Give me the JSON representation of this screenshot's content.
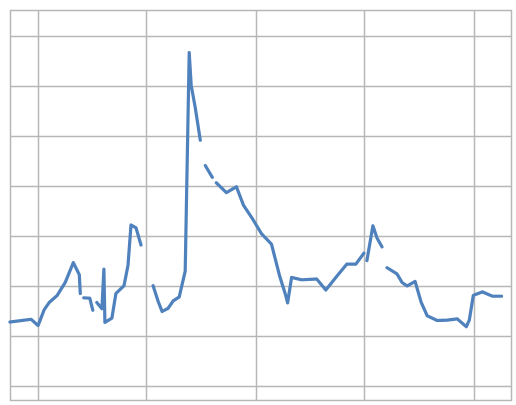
{
  "chart_data": {
    "type": "line",
    "title": "",
    "xlabel": "",
    "ylabel": "",
    "grid": true,
    "legend": "none",
    "xlim": [
      0,
      100
    ],
    "ylim": [
      0,
      100
    ],
    "series_color": "#4F81BD",
    "grid_color": "#B7B7B7",
    "series": [
      {
        "name": "",
        "segments": [
          [
            [
              0,
              20.2
            ],
            [
              4.2,
              20.9
            ],
            [
              5.6,
              19.3
            ],
            [
              6.8,
              23.3
            ],
            [
              7.8,
              25.2
            ],
            [
              9.4,
              27.0
            ],
            [
              11.0,
              30.3
            ],
            [
              12.6,
              35.4
            ],
            [
              13.8,
              32.3
            ],
            [
              14.0,
              27.5
            ]
          ],
          [
            [
              14.7,
              26.4
            ],
            [
              15.9,
              26.3
            ],
            [
              16.5,
              23.2
            ]
          ],
          [
            [
              17.3,
              25.2
            ],
            [
              18.3,
              23.6
            ],
            [
              18.7,
              33.7
            ],
            [
              18.9,
              20.1
            ],
            [
              20.3,
              21.2
            ],
            [
              21.1,
              27.5
            ],
            [
              22.7,
              29.5
            ],
            [
              23.5,
              34.7
            ],
            [
              24.1,
              45.0
            ],
            [
              25.1,
              44.3
            ],
            [
              26.1,
              39.9
            ]
          ],
          [
            [
              28.5,
              29.5
            ],
            [
              29.5,
              25.5
            ],
            [
              30.3,
              22.9
            ],
            [
              31.5,
              23.7
            ],
            [
              32.5,
              25.6
            ],
            [
              33.7,
              26.6
            ],
            [
              34.9,
              33.2
            ],
            [
              35.7,
              89.1
            ],
            [
              36.1,
              80.7
            ],
            [
              36.9,
              75.1
            ],
            [
              37.9,
              66.7
            ]
          ],
          [
            [
              38.9,
              60.2
            ],
            [
              40.3,
              57.2
            ]
          ],
          [
            [
              41.1,
              55.8
            ],
            [
              43.1,
              53.3
            ],
            [
              45.1,
              54.8
            ],
            [
              46.5,
              50.1
            ],
            [
              48.3,
              46.6
            ],
            [
              50.1,
              42.8
            ],
            [
              52.1,
              40.1
            ],
            [
              53.7,
              32.0
            ],
            [
              54.9,
              27.1
            ],
            [
              55.3,
              25.1
            ],
            [
              56.1,
              31.6
            ],
            [
              58.1,
              31.0
            ],
            [
              61.1,
              31.2
            ],
            [
              62.9,
              28.4
            ],
            [
              65.1,
              31.9
            ],
            [
              67.1,
              35.0
            ],
            [
              68.9,
              35.0
            ],
            [
              70.5,
              37.8
            ]
          ],
          [
            [
              71.1,
              35.9
            ],
            [
              72.3,
              44.8
            ],
            [
              73.1,
              41.7
            ],
            [
              74.1,
              39.4
            ]
          ],
          [
            [
              75.1,
              34.1
            ],
            [
              77.1,
              32.5
            ],
            [
              78.1,
              30.3
            ],
            [
              79.1,
              29.4
            ],
            [
              80.7,
              30.6
            ],
            [
              81.9,
              25.3
            ],
            [
              83.1,
              21.8
            ],
            [
              85.1,
              20.6
            ],
            [
              87.1,
              20.7
            ],
            [
              89.1,
              21.0
            ],
            [
              90.9,
              19.0
            ],
            [
              91.5,
              20.7
            ],
            [
              92.3,
              27.0
            ],
            [
              94.1,
              27.9
            ],
            [
              96.1,
              26.8
            ],
            [
              97.9,
              26.8
            ]
          ]
        ]
      }
    ]
  }
}
